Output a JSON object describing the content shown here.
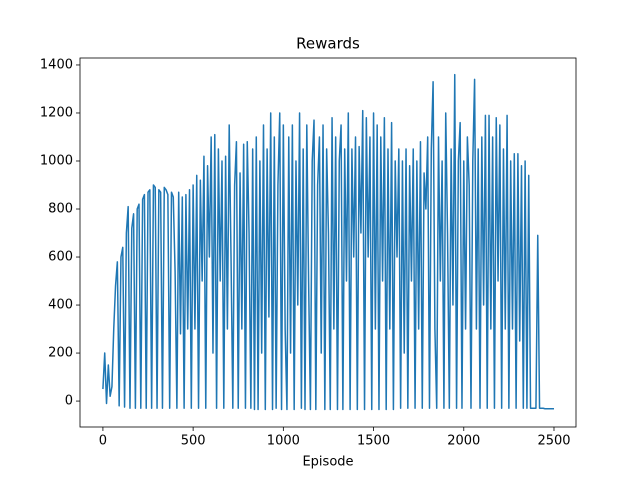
{
  "chart_data": {
    "type": "line",
    "title": "Rewards",
    "x_label": "Episode",
    "color": "#1f77b4",
    "xlim": [
      -127,
      2622
    ],
    "ylim": [
      -108,
      1429
    ],
    "xticks": [
      0,
      500,
      1000,
      1500,
      2000,
      2500
    ],
    "yticks": [
      0,
      200,
      400,
      600,
      800,
      1000,
      1200,
      1400
    ],
    "grid": false,
    "x": [
      0,
      10,
      20,
      30,
      40,
      50,
      60,
      70,
      80,
      90,
      100,
      110,
      120,
      130,
      140,
      150,
      160,
      170,
      180,
      190,
      200,
      210,
      220,
      230,
      240,
      250,
      260,
      270,
      280,
      290,
      300,
      310,
      320,
      330,
      340,
      350,
      360,
      370,
      380,
      390,
      400,
      410,
      420,
      430,
      440,
      450,
      460,
      470,
      480,
      490,
      500,
      510,
      520,
      530,
      540,
      550,
      560,
      570,
      580,
      590,
      600,
      610,
      620,
      630,
      640,
      650,
      660,
      670,
      680,
      690,
      700,
      710,
      720,
      730,
      740,
      750,
      760,
      770,
      780,
      790,
      800,
      810,
      820,
      830,
      840,
      850,
      860,
      870,
      880,
      890,
      900,
      910,
      920,
      930,
      940,
      950,
      960,
      970,
      980,
      990,
      1000,
      1010,
      1020,
      1030,
      1040,
      1050,
      1060,
      1070,
      1080,
      1090,
      1100,
      1110,
      1120,
      1130,
      1140,
      1150,
      1160,
      1170,
      1180,
      1190,
      1200,
      1210,
      1220,
      1230,
      1240,
      1250,
      1260,
      1270,
      1280,
      1290,
      1300,
      1310,
      1320,
      1330,
      1340,
      1350,
      1360,
      1370,
      1380,
      1390,
      1400,
      1410,
      1420,
      1430,
      1440,
      1450,
      1460,
      1470,
      1480,
      1490,
      1500,
      1510,
      1520,
      1530,
      1540,
      1550,
      1560,
      1570,
      1580,
      1590,
      1600,
      1610,
      1620,
      1630,
      1640,
      1650,
      1660,
      1670,
      1680,
      1690,
      1700,
      1710,
      1720,
      1730,
      1740,
      1750,
      1760,
      1770,
      1780,
      1790,
      1800,
      1810,
      1820,
      1830,
      1840,
      1850,
      1860,
      1870,
      1880,
      1890,
      1900,
      1910,
      1920,
      1930,
      1940,
      1950,
      1960,
      1970,
      1980,
      1990,
      2000,
      2010,
      2020,
      2030,
      2040,
      2050,
      2060,
      2070,
      2080,
      2090,
      2100,
      2110,
      2120,
      2130,
      2140,
      2150,
      2160,
      2170,
      2180,
      2190,
      2200,
      2210,
      2220,
      2230,
      2240,
      2250,
      2260,
      2270,
      2280,
      2290,
      2300,
      2310,
      2320,
      2330,
      2340,
      2350,
      2360,
      2370,
      2380,
      2390,
      2400,
      2410,
      2420,
      2430,
      2440,
      2450,
      2460,
      2470,
      2480,
      2490,
      2500
    ],
    "values": [
      50,
      200,
      -10,
      150,
      20,
      60,
      300,
      480,
      580,
      -20,
      600,
      640,
      -25,
      700,
      810,
      -30,
      720,
      780,
      -30,
      800,
      820,
      -30,
      840,
      860,
      -30,
      870,
      880,
      -30,
      900,
      890,
      -30,
      880,
      870,
      -30,
      890,
      880,
      860,
      -30,
      870,
      850,
      540,
      -30,
      870,
      280,
      850,
      -30,
      860,
      300,
      880,
      -30,
      900,
      300,
      940,
      -30,
      920,
      500,
      1020,
      -30,
      980,
      600,
      1100,
      200,
      1110,
      -30,
      1050,
      500,
      1000,
      -30,
      1020,
      300,
      1150,
      600,
      -30,
      900,
      1080,
      -30,
      950,
      300,
      1070,
      -30,
      1080,
      700,
      -30,
      1050,
      -35,
      1100,
      -35,
      1000,
      200,
      1150,
      -35,
      1050,
      350,
      1200,
      -35,
      1100,
      -30,
      900,
      1200,
      -35,
      1150,
      300,
      -35,
      1100,
      200,
      1150,
      -35,
      1000,
      400,
      1200,
      -30,
      1050,
      -35,
      1150,
      500,
      -35,
      1000,
      1170,
      -35,
      900,
      1100,
      200,
      1150,
      -35,
      1050,
      700,
      -35,
      1180,
      300,
      1100,
      -35,
      1000,
      1150,
      -35,
      1050,
      500,
      1200,
      -35,
      1050,
      600,
      1100,
      -35,
      1060,
      700,
      1210,
      -35,
      1180,
      600,
      1100,
      -35,
      1200,
      300,
      1150,
      -35,
      1100,
      500,
      1180,
      -35,
      1050,
      300,
      1160,
      -35,
      1000,
      600,
      1050,
      -30,
      1000,
      200,
      1050,
      -30,
      980,
      500,
      1050,
      -30,
      1000,
      300,
      1080,
      -30,
      950,
      800,
      1100,
      -30,
      1050,
      1330,
      300,
      -30,
      1100,
      500,
      1000,
      -30,
      1200,
      700,
      -30,
      1050,
      400,
      1360,
      -30,
      1000,
      1160,
      -30,
      1000,
      300,
      1100,
      900,
      -30,
      1000,
      1340,
      300,
      1050,
      -30,
      1100,
      400,
      1190,
      -30,
      1190,
      300,
      1100,
      -30,
      1180,
      500,
      1150,
      -30,
      1050,
      300,
      1190,
      -30,
      1000,
      300,
      1030,
      -30,
      1030,
      250,
      980,
      -30,
      1000,
      -30,
      940,
      -30,
      -30,
      -30,
      -30,
      690,
      -30,
      -30,
      -30,
      -32,
      -32,
      -32,
      -32,
      -32,
      -32
    ]
  }
}
